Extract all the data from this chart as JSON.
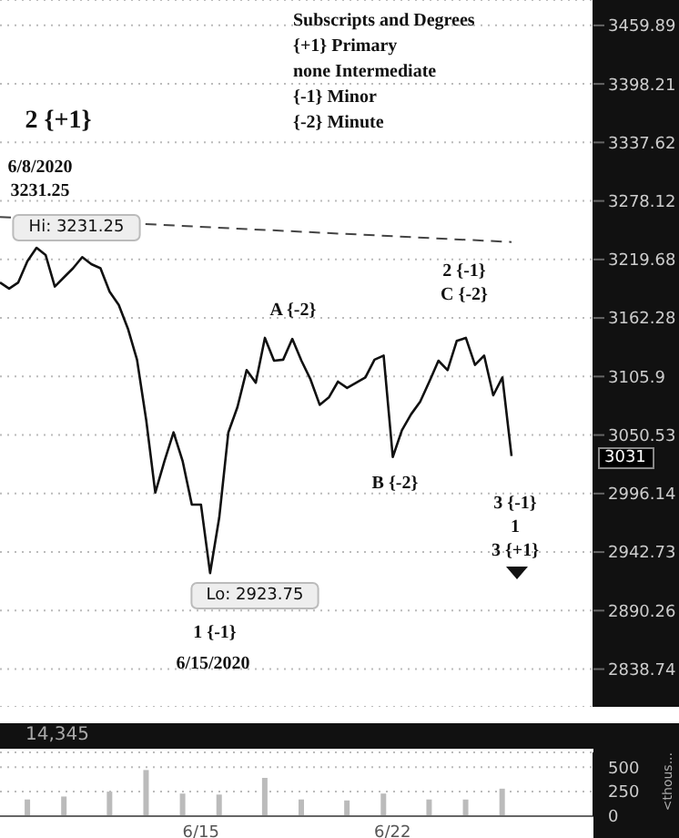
{
  "chart_data": [
    {
      "type": "line",
      "tick_labels": "y",
      "log": "y",
      "grid": "y",
      "marker": "none",
      "ylim": [
        2806,
        3487
      ],
      "yticks": [
        2838.74,
        2890.26,
        2942.73,
        2996.14,
        3050.53,
        3105.9,
        3162.28,
        3219.68,
        3278.12,
        3337.62,
        3398.21,
        3459.89
      ],
      "categories": [
        null,
        null,
        null,
        null,
        null,
        null,
        null,
        null,
        null,
        null,
        null,
        null,
        null,
        null,
        null,
        null,
        null,
        null,
        null,
        null,
        null,
        null,
        null,
        null,
        null,
        null,
        null,
        null,
        null,
        null,
        null,
        null,
        null,
        null,
        null,
        null,
        null,
        null,
        null,
        null,
        null,
        null,
        null,
        null,
        null,
        null,
        null,
        null,
        null,
        null,
        null,
        null,
        null,
        null,
        null,
        null,
        null
      ],
      "series": [
        {
          "color": "#111111",
          "line_style": "solid",
          "values": [
            3197,
            3191,
            3197,
            3218,
            3231.25,
            3224,
            3193,
            3202,
            3211,
            3222,
            3215,
            3211,
            3188,
            3175,
            3152,
            3122,
            3065,
            2997,
            3026,
            3053,
            3026,
            2986,
            2986,
            2923.75,
            2974,
            3053,
            3077,
            3112,
            3100,
            3143,
            3121,
            3122,
            3142,
            3121,
            3103,
            3079,
            3086,
            3101,
            3095,
            3100,
            3105,
            3122,
            3126,
            3030,
            3055,
            3070,
            3082,
            3101,
            3121,
            3112,
            3140,
            3143,
            3117,
            3126,
            3088,
            3105,
            3031
          ]
        },
        {
          "color": "#444444",
          "line_style": "dashed",
          "values": [
            3262,
            null,
            null,
            null,
            null,
            null,
            null,
            null,
            null,
            null,
            null,
            null,
            null,
            null,
            null,
            null,
            null,
            null,
            null,
            null,
            null,
            null,
            null,
            null,
            null,
            null,
            null,
            null,
            null,
            null,
            null,
            null,
            null,
            null,
            null,
            null,
            null,
            null,
            null,
            null,
            null,
            null,
            null,
            null,
            null,
            null,
            null,
            null,
            null,
            null,
            null,
            null,
            null,
            null,
            null,
            null,
            3237
          ]
        }
      ],
      "annotations": [
        "Subscripts and Degrees\n{+1} Primary\nnone Intermediate\n{-1} Minor\n{-2} Minute",
        "2 {+1}",
        "6/8/2020\n3231.25",
        "Hi: 3231.25",
        "A {-2}",
        "2 {-1}\nC {-2}",
        "B {-2}",
        "3 {-1}\n1\n3 {+1}",
        "Lo: 2923.75",
        "1 {-1}",
        "6/15/2020",
        "3031"
      ]
    },
    {
      "type": "bar",
      "color": "#bbbbbb",
      "grid": "y",
      "ylim": [
        0,
        650
      ],
      "yticks": [
        0,
        250,
        500
      ],
      "ylabel": "<thous...",
      "annotations": [
        "14,345"
      ],
      "categories": [
        null,
        null,
        null,
        null,
        null,
        null,
        null,
        null,
        null,
        null,
        null,
        null,
        null,
        null,
        null,
        null,
        null,
        null,
        null,
        null,
        null,
        null,
        "6/15",
        null,
        null,
        null,
        null,
        null,
        null,
        null,
        null,
        null,
        null,
        null,
        null,
        null,
        null,
        null,
        null,
        null,
        null,
        null,
        null,
        "6/22",
        null,
        null,
        null,
        null,
        null,
        null,
        null,
        null,
        null,
        null,
        null,
        null,
        null,
        null,
        null,
        null,
        null,
        null,
        null,
        null,
        null,
        null
      ],
      "values": [
        null,
        null,
        null,
        170,
        null,
        null,
        null,
        200,
        null,
        null,
        null,
        null,
        250,
        null,
        null,
        null,
        470,
        null,
        null,
        null,
        230,
        null,
        null,
        null,
        220,
        null,
        null,
        null,
        null,
        390,
        null,
        null,
        null,
        170,
        null,
        null,
        null,
        null,
        160,
        null,
        null,
        null,
        230,
        null,
        null,
        null,
        null,
        170,
        null,
        null,
        null,
        170,
        null,
        null,
        null,
        280,
        null,
        null,
        null,
        null,
        null,
        null,
        null,
        null,
        null,
        null
      ]
    }
  ]
}
